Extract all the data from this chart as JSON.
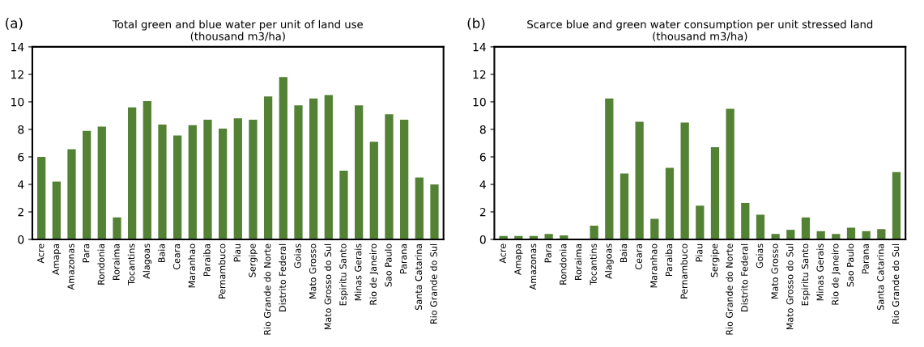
{
  "chart_data": [
    {
      "type": "bar",
      "title": "Total green and blue water per unit of land use\n(thousand m3/ha)",
      "annotations": [
        "(a)"
      ],
      "categories": [
        "Acre",
        "Amapa",
        "Amazonas",
        "Para",
        "Rondonia",
        "Roraima",
        "Tocantins",
        "Alagoas",
        "Baia",
        "Ceara",
        "Maranhao",
        "Paraiba",
        "Pernambuco",
        "Piau",
        "Sergipe",
        "Rio Grande do Norte",
        "Distrito Federal",
        "Goias",
        "Mato Grosso",
        "Mato Grosso do Sul",
        "Espiritu Santo",
        "Minas Gerais",
        "Rio de Janeiro",
        "Sao Paulo",
        "Parana",
        "Santa Catarina",
        "Rio Grande do Sul"
      ],
      "values": [
        6.0,
        4.2,
        6.55,
        7.9,
        8.2,
        1.6,
        9.6,
        10.05,
        8.35,
        7.55,
        8.3,
        8.7,
        8.05,
        8.8,
        8.7,
        10.4,
        11.8,
        9.75,
        10.25,
        10.5,
        5.0,
        9.75,
        7.1,
        9.1,
        8.7,
        4.5,
        4.0
      ],
      "color": "#548235",
      "ylim": [
        0,
        14
      ],
      "yticks": [
        0,
        2,
        4,
        6,
        8,
        10,
        12,
        14
      ],
      "grid": false,
      "legend": false
    },
    {
      "type": "bar",
      "title": "Scarce blue and green water consumption per unit stressed land\n(thousand m3/ha)",
      "annotations": [
        "(b)"
      ],
      "categories": [
        "Acre",
        "Amapa",
        "Amazonas",
        "Para",
        "Rondonia",
        "Roraima",
        "Tocantins",
        "Alagoas",
        "Baia",
        "Ceara",
        "Maranhao",
        "Paraiba",
        "Pernambuco",
        "Piau",
        "Sergipe",
        "Rio Grande do Norte",
        "Distrito Federal",
        "Goias",
        "Mato Grosso",
        "Mato Grosso do Sul",
        "Espiritu Santo",
        "Minas Gerais",
        "Rio de Janeiro",
        "Sao Paulo",
        "Parana",
        "Santa Catarina",
        "Rio Grande do Sul"
      ],
      "values": [
        0.25,
        0.25,
        0.25,
        0.4,
        0.3,
        0,
        1.0,
        10.25,
        4.8,
        8.55,
        1.5,
        5.2,
        8.5,
        2.45,
        6.7,
        9.5,
        2.65,
        1.8,
        0.4,
        0.7,
        1.6,
        0.6,
        0.4,
        0.85,
        0.6,
        0.75,
        4.9
      ],
      "color": "#548235",
      "ylim": [
        0,
        14
      ],
      "yticks": [
        0,
        2,
        4,
        6,
        8,
        10,
        12,
        14
      ],
      "grid": false,
      "legend": false
    }
  ]
}
